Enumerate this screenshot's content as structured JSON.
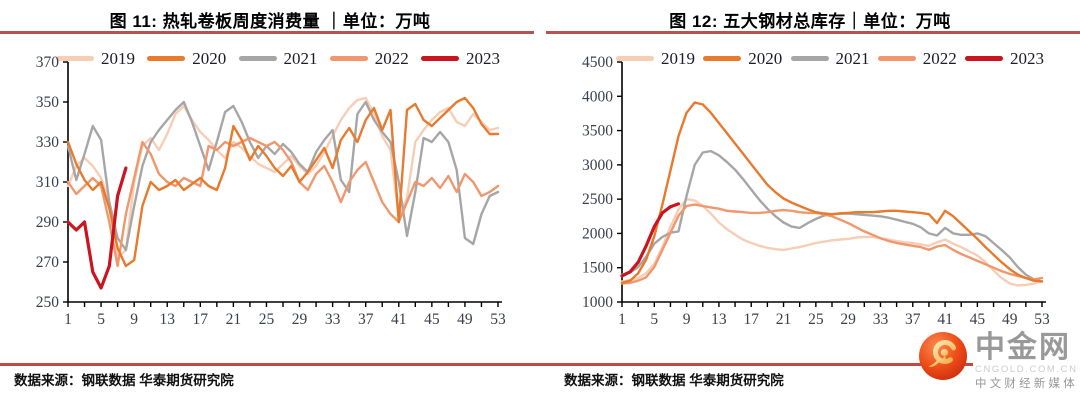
{
  "chart_data": [
    {
      "type": "line",
      "title": "图 11: 热轧卷板周度消费量 ｜单位：万吨",
      "source": "数据来源：钢联数据  华泰期货研究院",
      "unit": "万吨",
      "ylim": [
        250,
        370
      ],
      "ytick_step": 20,
      "yticks": [
        250,
        270,
        290,
        310,
        330,
        350,
        370
      ],
      "xlim": [
        1,
        53
      ],
      "xticks": [
        1,
        5,
        9,
        13,
        17,
        21,
        25,
        29,
        33,
        37,
        41,
        45,
        49,
        53
      ],
      "grid": false,
      "legend_position": "top",
      "series": [
        {
          "name": "2019",
          "color": "#f7cdb4",
          "values": [
            308,
            318,
            322,
            318,
            312,
            300,
            272,
            276,
            310,
            328,
            332,
            326,
            334,
            344,
            348,
            341,
            335,
            331,
            326,
            322,
            330,
            327,
            323,
            319,
            317,
            315,
            319,
            323,
            318,
            314,
            318,
            325,
            333,
            341,
            347,
            351,
            352,
            344,
            333,
            326,
            292,
            302,
            330,
            336,
            341,
            345,
            347,
            340,
            338,
            344,
            340,
            336,
            337
          ]
        },
        {
          "name": "2020",
          "color": "#e87a2e",
          "values": [
            330,
            319,
            311,
            306,
            310,
            297,
            277,
            268,
            271,
            298,
            310,
            306,
            308,
            311,
            306,
            309,
            312,
            308,
            306,
            317,
            338,
            331,
            321,
            328,
            323,
            317,
            313,
            318,
            310,
            315,
            321,
            327,
            317,
            331,
            337,
            330,
            341,
            347,
            336,
            346,
            290,
            346,
            349,
            341,
            338,
            342,
            346,
            350,
            352,
            347,
            339,
            334,
            334
          ]
        },
        {
          "name": "2021",
          "color": "#a6a6a6",
          "values": [
            328,
            311,
            324,
            338,
            331,
            300,
            282,
            276,
            298,
            318,
            330,
            336,
            341,
            346,
            350,
            340,
            328,
            316,
            330,
            345,
            348,
            340,
            330,
            322,
            328,
            324,
            329,
            325,
            319,
            315,
            325,
            331,
            336,
            311,
            305,
            344,
            350,
            341,
            335,
            330,
            310,
            283,
            305,
            332,
            330,
            335,
            330,
            316,
            282,
            279,
            294,
            303,
            305
          ]
        },
        {
          "name": "2022",
          "color": "#f0976e",
          "values": [
            310,
            304,
            308,
            312,
            308,
            290,
            268,
            294,
            312,
            330,
            324,
            314,
            310,
            308,
            312,
            310,
            308,
            328,
            326,
            330,
            328,
            330,
            332,
            330,
            328,
            330,
            326,
            320,
            310,
            306,
            314,
            318,
            310,
            300,
            310,
            316,
            320,
            310,
            300,
            294,
            290,
            300,
            310,
            308,
            312,
            307,
            313,
            305,
            314,
            310,
            303,
            305,
            308
          ]
        },
        {
          "name": "2023",
          "color": "#cc1320",
          "width": 3.2,
          "values": [
            290,
            286,
            290,
            265,
            257,
            268,
            303,
            317
          ]
        }
      ]
    },
    {
      "type": "line",
      "title": "图 12: 五大钢材总库存｜单位：万吨",
      "source": "数据来源：钢联数据  华泰期货研究院",
      "unit": "万吨",
      "ylim": [
        1000,
        4500
      ],
      "ytick_step": 500,
      "yticks": [
        1000,
        1500,
        2000,
        2500,
        3000,
        3500,
        4000,
        4500
      ],
      "xlim": [
        1,
        53
      ],
      "xticks": [
        1,
        5,
        9,
        13,
        17,
        21,
        25,
        29,
        33,
        37,
        41,
        45,
        49,
        53
      ],
      "grid": false,
      "legend_position": "top",
      "series": [
        {
          "name": "2019",
          "color": "#f7cdb4",
          "values": [
            1300,
            1320,
            1350,
            1420,
            1560,
            1800,
            2100,
            2350,
            2500,
            2480,
            2400,
            2290,
            2160,
            2060,
            1980,
            1910,
            1860,
            1820,
            1790,
            1770,
            1760,
            1780,
            1800,
            1830,
            1860,
            1880,
            1900,
            1910,
            1920,
            1940,
            1950,
            1950,
            1930,
            1910,
            1890,
            1870,
            1860,
            1840,
            1820,
            1870,
            1910,
            1850,
            1800,
            1740,
            1680,
            1580,
            1460,
            1350,
            1270,
            1240,
            1250,
            1270,
            1300
          ]
        },
        {
          "name": "2020",
          "color": "#e87a2e",
          "values": [
            1280,
            1310,
            1420,
            1620,
            1960,
            2420,
            2920,
            3420,
            3760,
            3910,
            3880,
            3760,
            3610,
            3460,
            3310,
            3160,
            3010,
            2860,
            2710,
            2600,
            2510,
            2450,
            2400,
            2350,
            2310,
            2290,
            2280,
            2290,
            2300,
            2310,
            2310,
            2310,
            2320,
            2330,
            2330,
            2320,
            2310,
            2300,
            2280,
            2150,
            2330,
            2250,
            2140,
            2030,
            1920,
            1800,
            1690,
            1580,
            1480,
            1400,
            1350,
            1310,
            1300
          ]
        },
        {
          "name": "2021",
          "color": "#a6a6a6",
          "values": [
            1400,
            1430,
            1510,
            1660,
            1850,
            1950,
            2010,
            2030,
            2550,
            3000,
            3180,
            3200,
            3140,
            3040,
            2930,
            2790,
            2640,
            2490,
            2360,
            2250,
            2160,
            2100,
            2080,
            2150,
            2210,
            2260,
            2280,
            2290,
            2290,
            2280,
            2270,
            2260,
            2250,
            2230,
            2200,
            2170,
            2140,
            2090,
            2000,
            1970,
            2080,
            2000,
            1980,
            1980,
            2000,
            1960,
            1860,
            1760,
            1650,
            1510,
            1400,
            1330,
            1300
          ]
        },
        {
          "name": "2022",
          "color": "#f0976e",
          "values": [
            1270,
            1280,
            1310,
            1360,
            1510,
            1760,
            2010,
            2260,
            2400,
            2420,
            2400,
            2380,
            2360,
            2330,
            2320,
            2310,
            2300,
            2300,
            2310,
            2330,
            2340,
            2330,
            2310,
            2300,
            2300,
            2280,
            2250,
            2200,
            2150,
            2090,
            2030,
            1980,
            1930,
            1890,
            1860,
            1840,
            1820,
            1800,
            1760,
            1810,
            1830,
            1760,
            1700,
            1650,
            1600,
            1550,
            1500,
            1450,
            1410,
            1380,
            1350,
            1330,
            1350
          ]
        },
        {
          "name": "2023",
          "color": "#cc1320",
          "width": 3.2,
          "values": [
            1380,
            1440,
            1580,
            1820,
            2100,
            2300,
            2390,
            2430
          ]
        }
      ]
    }
  ],
  "colors": {
    "title_rule": "#b5534e",
    "bottom_rule": "#bd4b42",
    "axis": "#000000",
    "tick_text": "#3a3f4d"
  },
  "logo": {
    "name": "中金网",
    "domain": "CNGOLD.COM.CN",
    "tagline": "中文财经新媒体"
  }
}
